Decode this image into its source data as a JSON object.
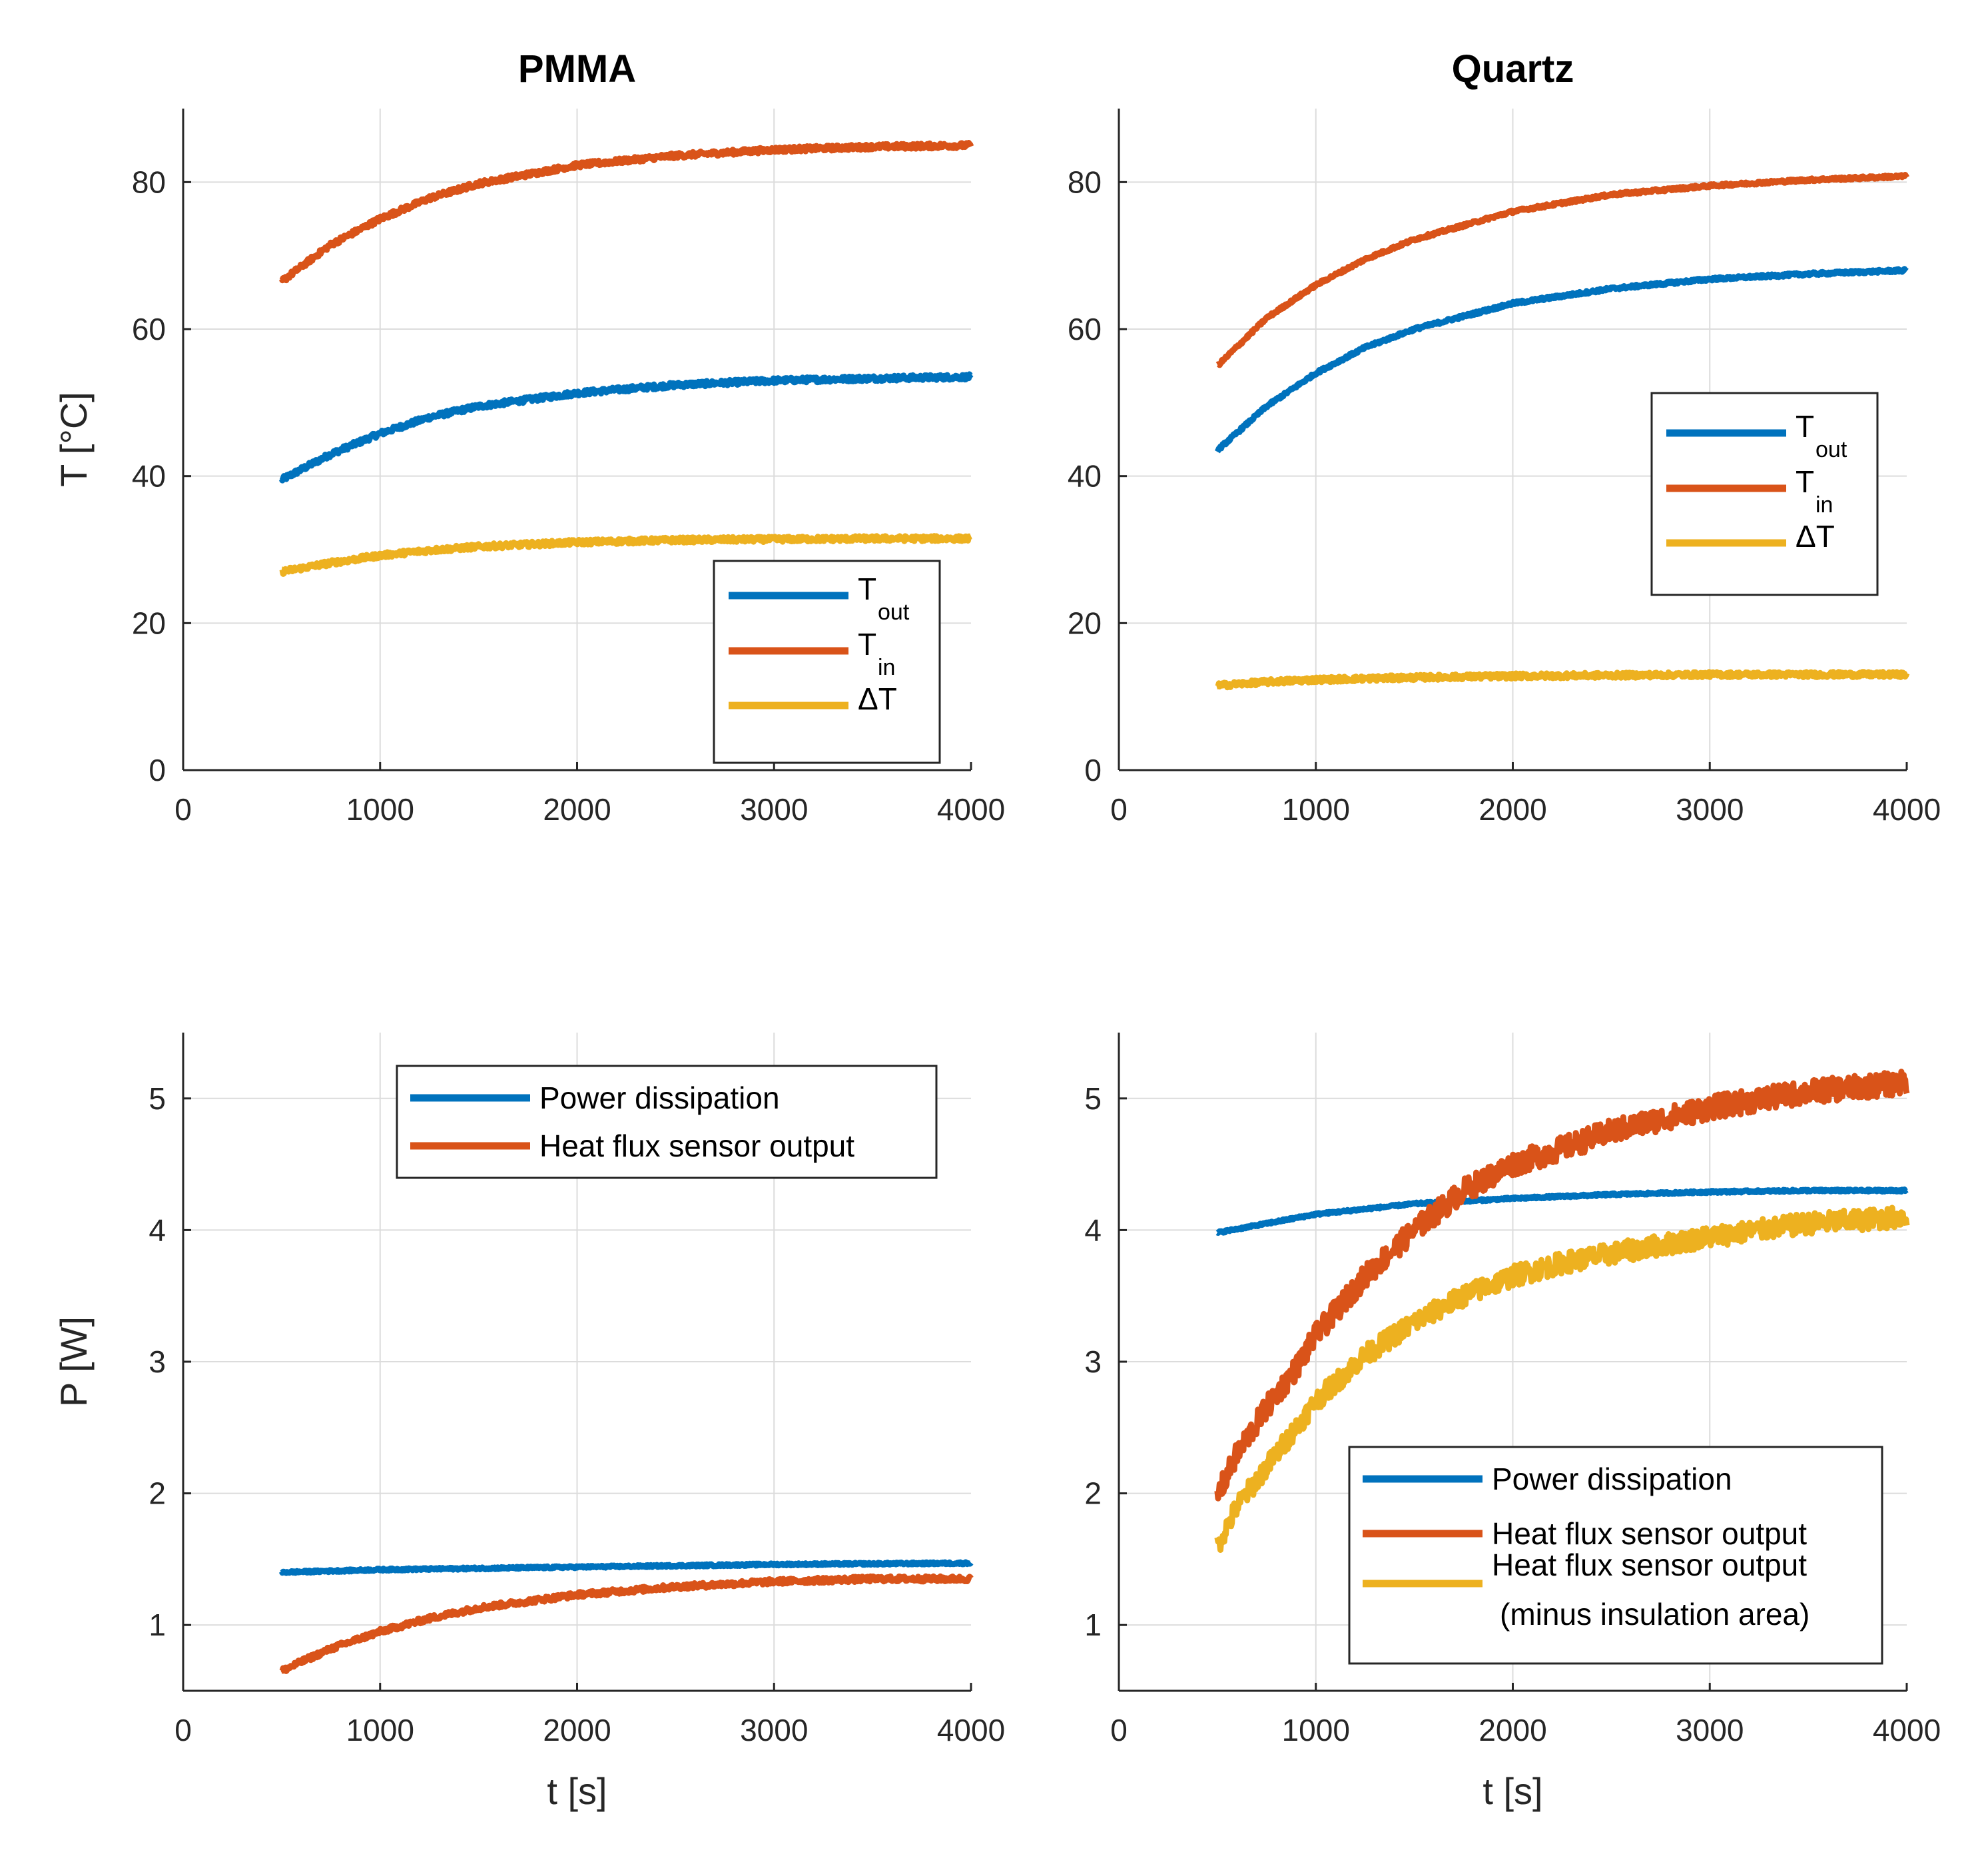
{
  "chart_data": [
    {
      "id": "pmma_temp",
      "type": "line",
      "title": "PMMA",
      "xlabel": "",
      "ylabel": "T [°C]",
      "xlim": [
        0,
        4000
      ],
      "ylim": [
        0,
        90
      ],
      "xticks": [
        0,
        1000,
        2000,
        3000,
        4000
      ],
      "yticks": [
        0,
        20,
        40,
        60,
        80
      ],
      "grid": true,
      "legend_position": "bottom-right",
      "series": [
        {
          "name": "T",
          "sub": "out",
          "color": "#0072BD",
          "x": [
            500,
            750,
            1000,
            1250,
            1500,
            2000,
            2500,
            3000,
            3500,
            4000
          ],
          "y": [
            39.5,
            43,
            45.8,
            48,
            49.5,
            51.3,
            52.4,
            53,
            53.3,
            53.5
          ]
        },
        {
          "name": "T",
          "sub": "in",
          "color": "#D95319",
          "x": [
            500,
            750,
            1000,
            1250,
            1500,
            2000,
            2500,
            3000,
            3500,
            4000
          ],
          "y": [
            66.5,
            71.5,
            75,
            77.8,
            79.8,
            82.3,
            83.6,
            84.4,
            84.8,
            85
          ]
        },
        {
          "name": "ΔT",
          "sub": "",
          "color": "#EDB120",
          "x": [
            500,
            750,
            1000,
            1250,
            1500,
            2000,
            2500,
            3000,
            3500,
            4000
          ],
          "y": [
            27,
            28.2,
            29.2,
            29.9,
            30.4,
            31,
            31.3,
            31.4,
            31.5,
            31.5
          ]
        }
      ]
    },
    {
      "id": "quartz_temp",
      "type": "line",
      "title": "Quartz",
      "xlabel": "",
      "ylabel": "",
      "xlim": [
        0,
        4000
      ],
      "ylim": [
        0,
        90
      ],
      "xticks": [
        0,
        1000,
        2000,
        3000,
        4000
      ],
      "yticks": [
        0,
        20,
        40,
        60,
        80
      ],
      "grid": true,
      "legend_position": "right",
      "series": [
        {
          "name": "T",
          "sub": "out",
          "color": "#0072BD",
          "x": [
            500,
            750,
            1000,
            1250,
            1500,
            2000,
            2500,
            3000,
            3500,
            4000
          ],
          "y": [
            43.5,
            49.5,
            54,
            57.5,
            60,
            63.5,
            65.5,
            66.8,
            67.5,
            68
          ]
        },
        {
          "name": "T",
          "sub": "in",
          "color": "#D95319",
          "x": [
            500,
            750,
            1000,
            1250,
            1500,
            2000,
            2500,
            3000,
            3500,
            4000
          ],
          "y": [
            55,
            61.5,
            66,
            69.5,
            72.2,
            76,
            78.3,
            79.5,
            80.3,
            80.8
          ]
        },
        {
          "name": "ΔT",
          "sub": "",
          "color": "#EDB120",
          "x": [
            500,
            750,
            1000,
            1500,
            2000,
            2500,
            3000,
            3500,
            4000
          ],
          "y": [
            11.5,
            12,
            12.3,
            12.6,
            12.8,
            12.9,
            13,
            13,
            13
          ]
        }
      ]
    },
    {
      "id": "pmma_power",
      "type": "line",
      "title": "",
      "xlabel": "t [s]",
      "ylabel": "P [W]",
      "xlim": [
        0,
        4000
      ],
      "ylim": [
        0.5,
        5.5
      ],
      "xticks": [
        0,
        1000,
        2000,
        3000,
        4000
      ],
      "yticks": [
        1,
        2,
        3,
        4,
        5
      ],
      "grid": true,
      "legend_position": "top-right",
      "series": [
        {
          "name": "Power dissipation",
          "color": "#0072BD",
          "x": [
            500,
            1000,
            1500,
            2000,
            2500,
            3000,
            3500,
            4000
          ],
          "y": [
            1.4,
            1.42,
            1.43,
            1.44,
            1.45,
            1.46,
            1.465,
            1.47
          ]
        },
        {
          "name": "Heat flux sensor output",
          "color": "#D95319",
          "x": [
            500,
            600,
            750,
            1000,
            1250,
            1500,
            2000,
            2500,
            3000,
            3500,
            4000
          ],
          "y": [
            0.65,
            0.72,
            0.82,
            0.95,
            1.05,
            1.13,
            1.23,
            1.29,
            1.33,
            1.35,
            1.35
          ]
        }
      ]
    },
    {
      "id": "quartz_power",
      "type": "line",
      "title": "",
      "xlabel": "t [s]",
      "ylabel": "",
      "xlim": [
        0,
        4000
      ],
      "ylim": [
        0.5,
        5.5
      ],
      "xticks": [
        0,
        1000,
        2000,
        3000,
        4000
      ],
      "yticks": [
        1,
        2,
        3,
        4,
        5
      ],
      "grid": true,
      "legend_position": "bottom-right",
      "series": [
        {
          "name": "Power dissipation",
          "color": "#0072BD",
          "x": [
            500,
            750,
            1000,
            1500,
            2000,
            2500,
            3000,
            3500,
            4000
          ],
          "y": [
            3.98,
            4.05,
            4.12,
            4.2,
            4.24,
            4.27,
            4.29,
            4.3,
            4.3
          ]
        },
        {
          "name": "Heat flux sensor output",
          "color": "#D95319",
          "x": [
            500,
            600,
            750,
            900,
            1000,
            1250,
            1500,
            1750,
            2000,
            2250,
            2500,
            3000,
            3500,
            4000
          ],
          "y": [
            1.98,
            2.3,
            2.65,
            2.95,
            3.2,
            3.65,
            4.0,
            4.3,
            4.5,
            4.62,
            4.75,
            4.93,
            5.05,
            5.12
          ]
        },
        {
          "name": "Heat flux sensor output",
          "name2": "(minus insulation area)",
          "color": "#EDB120",
          "x": [
            500,
            600,
            750,
            900,
            1000,
            1250,
            1500,
            1750,
            2000,
            2250,
            2500,
            3000,
            3500,
            4000
          ],
          "y": [
            1.6,
            1.9,
            2.2,
            2.5,
            2.7,
            3.05,
            3.3,
            3.5,
            3.65,
            3.75,
            3.82,
            3.95,
            4.05,
            4.1
          ]
        }
      ]
    }
  ]
}
